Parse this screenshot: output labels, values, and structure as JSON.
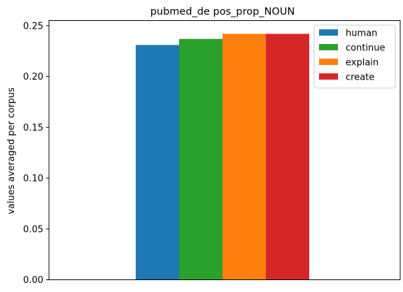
{
  "chart_data": {
    "type": "bar",
    "title": "pubmed_de pos_prop_NOUN",
    "xlabel": "",
    "ylabel": "values averaged per corpus",
    "categories": [
      ""
    ],
    "series": [
      {
        "name": "human",
        "values": [
          0.231
        ],
        "color": "#1f77b4"
      },
      {
        "name": "continue",
        "values": [
          0.237
        ],
        "color": "#2ca02c"
      },
      {
        "name": "explain",
        "values": [
          0.242
        ],
        "color": "#ff7f0e"
      },
      {
        "name": "create",
        "values": [
          0.242
        ],
        "color": "#d62728"
      }
    ],
    "ylim": [
      0,
      0.255
    ],
    "yticks": [
      0.0,
      0.05,
      0.1,
      0.15,
      0.2,
      0.25
    ],
    "ytick_labels": [
      "0.00",
      "0.05",
      "0.10",
      "0.15",
      "0.20",
      "0.25"
    ],
    "grid": false,
    "legend_position": "top-right"
  }
}
